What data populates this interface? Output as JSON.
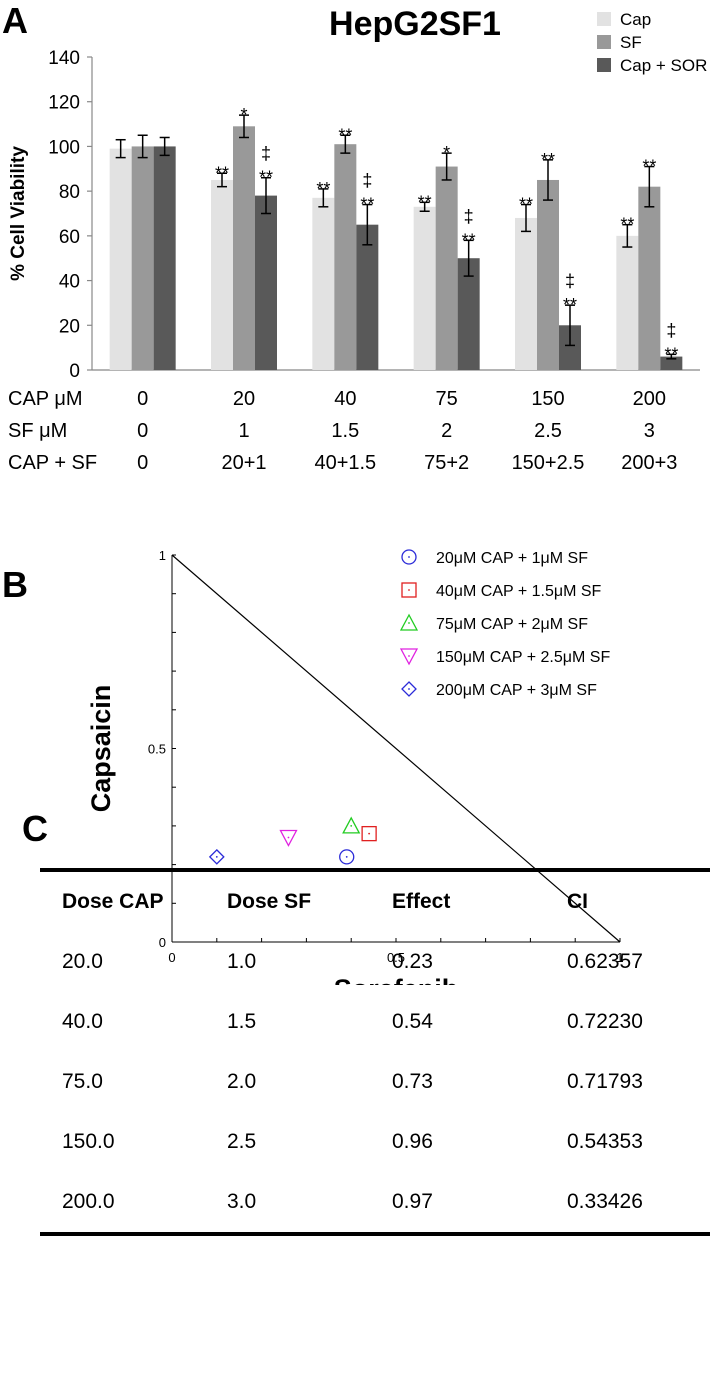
{
  "panels": {
    "a": "A",
    "b": "B",
    "c": "C"
  },
  "colors": {
    "cap": "#e2e2e2",
    "sf": "#999999",
    "capsor": "#595959"
  },
  "chart_data": [
    {
      "id": "A",
      "type": "bar",
      "title": "HepG2SF1",
      "ylabel": "% Cell Viability",
      "xlabel": "",
      "ylim": [
        0,
        140
      ],
      "yticks": [
        "0",
        "20",
        "40",
        "60",
        "80",
        "100",
        "120",
        "140"
      ],
      "legend_position": "top-right",
      "categories": [
        "0",
        "20",
        "40",
        "75",
        "150",
        "200"
      ],
      "series": [
        {
          "name": "Cap",
          "color": "#e2e2e2",
          "values": [
            99,
            85,
            77,
            73,
            68,
            60
          ],
          "errors": [
            4,
            3,
            4,
            2,
            6,
            5
          ],
          "labels": [
            "",
            "**",
            "**",
            "**",
            "**",
            "**"
          ]
        },
        {
          "name": "SF",
          "color": "#999999",
          "values": [
            100,
            109,
            101,
            91,
            85,
            82
          ],
          "errors": [
            5,
            5,
            4,
            6,
            9,
            9
          ],
          "labels": [
            "",
            "*",
            "**",
            "*",
            "**",
            "**"
          ]
        },
        {
          "name": "Cap + SOR",
          "color": "#595959",
          "values": [
            100,
            78,
            65,
            50,
            20,
            6
          ],
          "errors": [
            4,
            8,
            9,
            8,
            9,
            1
          ],
          "labels": [
            "",
            "‡\n**",
            "‡\n**",
            "‡\n**",
            "‡\n**",
            "‡\n**"
          ]
        }
      ],
      "conditions": [
        {
          "label": "CAP μM",
          "values": [
            "0",
            "20",
            "40",
            "75",
            "150",
            "200"
          ]
        },
        {
          "label": "SF    μM",
          "values": [
            "0",
            "1",
            "1.5",
            "2",
            "2.5",
            "3"
          ]
        },
        {
          "label": "CAP + SF",
          "values": [
            "0",
            "20+1",
            "40+1.5",
            "75+2",
            "150+2.5",
            "200+3"
          ]
        }
      ]
    },
    {
      "id": "B",
      "type": "scatter",
      "title": "",
      "xlabel": "Sorafenib",
      "ylabel": "Capsaicin",
      "xlim": [
        0,
        1
      ],
      "ylim": [
        0,
        1
      ],
      "xticks": [
        "0",
        "0.5",
        "1"
      ],
      "yticks": [
        "0",
        "0.5",
        "1"
      ],
      "additivity_line": {
        "x": [
          0,
          1
        ],
        "y": [
          1,
          0
        ]
      },
      "legend_position": "top-right",
      "series": [
        {
          "name": "20μM CAP + 1μM SF",
          "marker": "circle",
          "color": "#2b2bd8",
          "x": 0.39,
          "y": 0.22
        },
        {
          "name": "40μM CAP + 1.5μM SF",
          "marker": "square",
          "color": "#e02020",
          "x": 0.44,
          "y": 0.28
        },
        {
          "name": "75μM CAP + 2μM SF",
          "marker": "triangle-up",
          "color": "#22cc22",
          "x": 0.4,
          "y": 0.3
        },
        {
          "name": "150μM CAP + 2.5μM SF",
          "marker": "triangle-down",
          "color": "#e022e0",
          "x": 0.26,
          "y": 0.27
        },
        {
          "name": "200μM CAP + 3μM SF",
          "marker": "diamond",
          "color": "#2b2bd8",
          "x": 0.1,
          "y": 0.22
        }
      ]
    },
    {
      "id": "C",
      "type": "table",
      "columns": [
        "Dose CAP",
        "Dose SF",
        "Effect",
        "CI"
      ],
      "rows": [
        [
          "20.0",
          "1.0",
          "0.23",
          "0.62357"
        ],
        [
          "40.0",
          "1.5",
          "0.54",
          "0.72230"
        ],
        [
          "75.0",
          "2.0",
          "0.73",
          "0.71793"
        ],
        [
          "150.0",
          "2.5",
          "0.96",
          "0.54353"
        ],
        [
          "200.0",
          "3.0",
          "0.97",
          "0.33426"
        ]
      ]
    }
  ]
}
